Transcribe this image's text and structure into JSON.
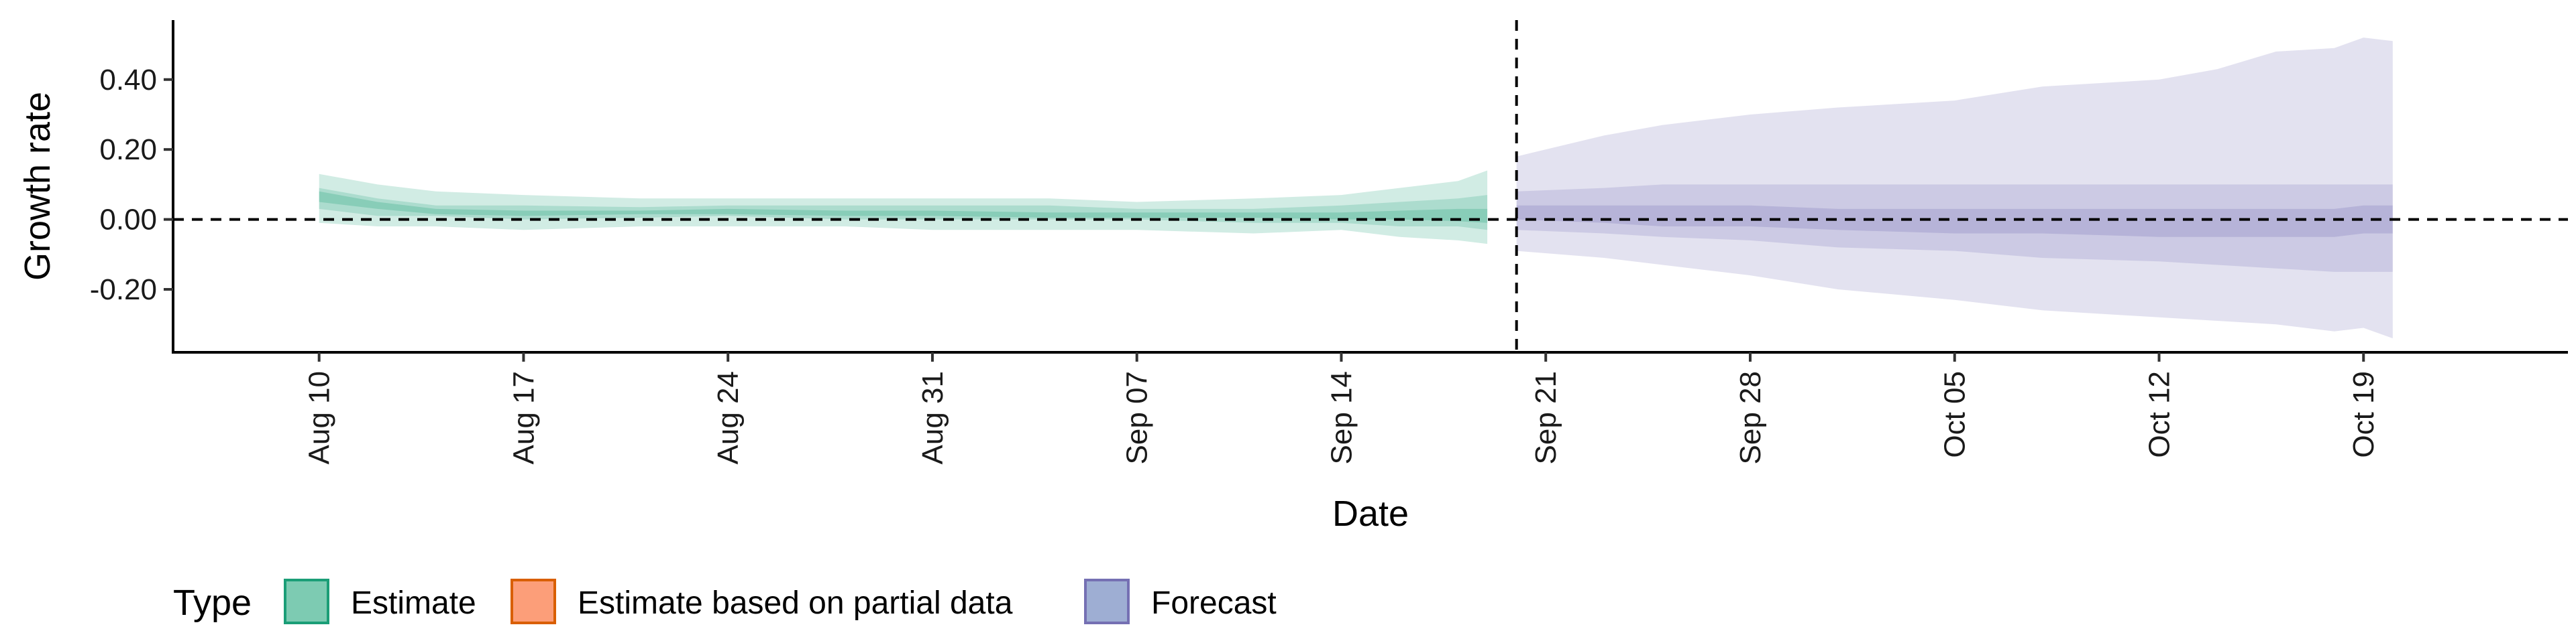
{
  "chart_data": {
    "type": "area",
    "xlabel": "Date",
    "ylabel": "Growth rate",
    "x_ticks": [
      "Aug 10",
      "Aug 17",
      "Aug 24",
      "Aug 31",
      "Sep 07",
      "Sep 14",
      "Sep 21",
      "Sep 28",
      "Oct 05",
      "Oct 12",
      "Oct 19"
    ],
    "x_tick_dates": [
      "2020-08-10",
      "2020-08-17",
      "2020-08-24",
      "2020-08-31",
      "2020-09-07",
      "2020-09-14",
      "2020-09-21",
      "2020-09-28",
      "2020-10-05",
      "2020-10-12",
      "2020-10-19"
    ],
    "x_range": [
      "2020-08-05",
      "2020-10-26"
    ],
    "y_ticks": [
      "-0.20",
      "0.00",
      "0.20",
      "0.40"
    ],
    "y_tick_values": [
      -0.2,
      0.0,
      0.2,
      0.4
    ],
    "ylim": [
      -0.38,
      0.57
    ],
    "reference_lines": [
      {
        "orientation": "horizontal",
        "value": 0.0,
        "style": "dashed"
      },
      {
        "orientation": "vertical",
        "value": "2020-09-20",
        "style": "dashed"
      }
    ],
    "grid": false,
    "legend": {
      "title": "Type",
      "placement": "bottom",
      "entries": [
        {
          "label": "Estimate",
          "fill": "#66c2a5",
          "stroke": "#1b9e77"
        },
        {
          "label": "Estimate based on partial data",
          "fill": "#fc8d62",
          "stroke": "#d95f02"
        },
        {
          "label": "Forecast",
          "fill": "#8da0cb",
          "stroke": "#7570b3"
        }
      ]
    },
    "series": [
      {
        "name": "Estimate",
        "color": "#1b9e77",
        "dates": [
          "2020-08-10",
          "2020-08-12",
          "2020-08-14",
          "2020-08-17",
          "2020-08-21",
          "2020-08-24",
          "2020-08-28",
          "2020-08-31",
          "2020-09-04",
          "2020-09-07",
          "2020-09-11",
          "2020-09-14",
          "2020-09-16",
          "2020-09-18",
          "2020-09-19"
        ],
        "outer_upper": [
          0.13,
          0.1,
          0.08,
          0.07,
          0.06,
          0.06,
          0.06,
          0.06,
          0.06,
          0.05,
          0.06,
          0.07,
          0.09,
          0.11,
          0.14
        ],
        "outer_lower": [
          -0.01,
          -0.02,
          -0.02,
          -0.03,
          -0.02,
          -0.02,
          -0.02,
          -0.03,
          -0.03,
          -0.03,
          -0.04,
          -0.03,
          -0.05,
          -0.06,
          -0.07
        ],
        "mid_upper": [
          0.09,
          0.06,
          0.04,
          0.04,
          0.035,
          0.04,
          0.04,
          0.04,
          0.04,
          0.03,
          0.03,
          0.04,
          0.05,
          0.06,
          0.07
        ],
        "mid_lower": [
          0.03,
          0.01,
          0.01,
          0.0,
          0.005,
          0.01,
          0.0,
          0.0,
          0.0,
          0.0,
          -0.01,
          -0.01,
          -0.02,
          -0.02,
          -0.03
        ],
        "inner_upper": [
          0.08,
          0.05,
          0.03,
          0.025,
          0.025,
          0.03,
          0.025,
          0.025,
          0.02,
          0.02,
          0.02,
          0.02,
          0.025,
          0.03,
          0.03
        ],
        "inner_lower": [
          0.05,
          0.03,
          0.015,
          0.01,
          0.015,
          0.015,
          0.01,
          0.01,
          0.005,
          0.005,
          0.005,
          0.0,
          0.0,
          -0.005,
          -0.01
        ]
      },
      {
        "name": "Forecast",
        "color": "#7570b3",
        "dates": [
          "2020-09-20",
          "2020-09-23",
          "2020-09-25",
          "2020-09-28",
          "2020-10-01",
          "2020-10-05",
          "2020-10-08",
          "2020-10-12",
          "2020-10-14",
          "2020-10-16",
          "2020-10-18",
          "2020-10-19",
          "2020-10-20"
        ],
        "outer_upper": [
          0.18,
          0.24,
          0.27,
          0.3,
          0.32,
          0.34,
          0.38,
          0.4,
          0.43,
          0.48,
          0.49,
          0.52,
          0.51
        ],
        "outer_lower": [
          -0.09,
          -0.11,
          -0.13,
          -0.16,
          -0.2,
          -0.23,
          -0.26,
          -0.28,
          -0.29,
          -0.3,
          -0.32,
          -0.31,
          -0.34
        ],
        "mid_upper": [
          0.08,
          0.09,
          0.1,
          0.1,
          0.1,
          0.1,
          0.1,
          0.1,
          0.1,
          0.1,
          0.1,
          0.1,
          0.1
        ],
        "mid_lower": [
          -0.03,
          -0.04,
          -0.05,
          -0.06,
          -0.08,
          -0.09,
          -0.11,
          -0.12,
          -0.13,
          -0.14,
          -0.15,
          -0.15,
          -0.15
        ],
        "inner_upper": [
          0.04,
          0.04,
          0.04,
          0.04,
          0.03,
          0.03,
          0.03,
          0.03,
          0.03,
          0.03,
          0.03,
          0.04,
          0.04
        ],
        "inner_lower": [
          0.0,
          -0.01,
          -0.02,
          -0.02,
          -0.03,
          -0.04,
          -0.04,
          -0.05,
          -0.05,
          -0.05,
          -0.05,
          -0.04,
          -0.04
        ]
      }
    ]
  }
}
